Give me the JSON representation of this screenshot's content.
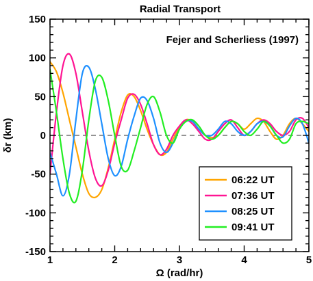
{
  "chart_data": {
    "type": "line",
    "title": "Radial Transport",
    "annotation": "Fejer and Scherliess (1997)",
    "xlabel": "Ω (rad/hr)",
    "ylabel": "δr (km)",
    "xlim": [
      1,
      5
    ],
    "ylim": [
      -150,
      150
    ],
    "xticks": [
      1,
      2,
      3,
      4,
      5
    ],
    "yticks": [
      -150,
      -100,
      -50,
      0,
      50,
      100,
      150
    ],
    "zero_line": "dashed",
    "legend_position": "lower-right",
    "series": [
      {
        "name": "06:22 UT",
        "color": "#FFA500",
        "x": [
          1.0,
          1.1,
          1.2,
          1.3,
          1.4,
          1.5,
          1.6,
          1.7,
          1.8,
          1.9,
          2.0,
          2.1,
          2.2,
          2.3,
          2.4,
          2.5,
          2.6,
          2.7,
          2.8,
          2.9,
          3.0,
          3.1,
          3.2,
          3.3,
          3.4,
          3.5,
          3.6,
          3.7,
          3.8,
          3.9,
          4.0,
          4.1,
          4.2,
          4.3,
          4.4,
          4.5,
          4.6,
          4.7,
          4.8,
          4.9,
          5.0
        ],
        "y": [
          95,
          82,
          55,
          20,
          -15,
          -50,
          -75,
          -80,
          -70,
          -42,
          -5,
          30,
          52,
          50,
          32,
          8,
          -12,
          -25,
          -22,
          -5,
          10,
          20,
          18,
          8,
          0,
          -3,
          0,
          10,
          18,
          15,
          8,
          15,
          22,
          18,
          5,
          -5,
          0,
          15,
          22,
          15,
          5
        ]
      },
      {
        "name": "07:36 UT",
        "color": "#FF1493",
        "x": [
          1.0,
          1.1,
          1.2,
          1.3,
          1.4,
          1.5,
          1.6,
          1.7,
          1.8,
          1.9,
          2.0,
          2.1,
          2.2,
          2.3,
          2.4,
          2.5,
          2.6,
          2.7,
          2.8,
          2.9,
          3.0,
          3.1,
          3.2,
          3.3,
          3.4,
          3.5,
          3.6,
          3.7,
          3.8,
          3.9,
          4.0,
          4.1,
          4.2,
          4.3,
          4.4,
          4.5,
          4.6,
          4.7,
          4.8,
          4.9,
          5.0
        ],
        "y": [
          -50,
          30,
          90,
          105,
          80,
          30,
          -20,
          -55,
          -65,
          -45,
          -10,
          20,
          48,
          53,
          40,
          15,
          -12,
          -25,
          -18,
          0,
          12,
          20,
          15,
          5,
          -5,
          -5,
          5,
          15,
          20,
          10,
          0,
          5,
          15,
          20,
          15,
          5,
          0,
          5,
          20,
          22,
          10
        ]
      },
      {
        "name": "08:25 UT",
        "color": "#1E90FF",
        "x": [
          1.0,
          1.1,
          1.2,
          1.3,
          1.4,
          1.5,
          1.6,
          1.7,
          1.8,
          1.9,
          2.0,
          2.1,
          2.2,
          2.3,
          2.4,
          2.5,
          2.6,
          2.7,
          2.8,
          2.9,
          3.0,
          3.1,
          3.2,
          3.3,
          3.4,
          3.5,
          3.6,
          3.7,
          3.8,
          3.9,
          4.0,
          4.1,
          4.2,
          4.3,
          4.4,
          4.5,
          4.6,
          4.7,
          4.8,
          4.9,
          5.0
        ],
        "y": [
          -22,
          -50,
          -78,
          -50,
          20,
          80,
          88,
          60,
          15,
          -30,
          -52,
          -40,
          -5,
          25,
          48,
          45,
          22,
          -10,
          -22,
          -10,
          8,
          18,
          18,
          8,
          0,
          0,
          8,
          18,
          15,
          5,
          0,
          5,
          15,
          18,
          12,
          0,
          -2,
          12,
          22,
          15,
          -10
        ]
      },
      {
        "name": "09:41 UT",
        "color": "#22EE22",
        "x": [
          1.0,
          1.1,
          1.2,
          1.3,
          1.4,
          1.5,
          1.6,
          1.7,
          1.8,
          1.9,
          2.0,
          2.1,
          2.2,
          2.3,
          2.4,
          2.5,
          2.6,
          2.7,
          2.8,
          2.9,
          3.0,
          3.1,
          3.2,
          3.3,
          3.4,
          3.5,
          3.6,
          3.7,
          3.8,
          3.9,
          4.0,
          4.1,
          4.2,
          4.3,
          4.4,
          4.5,
          4.6,
          4.7,
          4.8,
          4.9,
          5.0
        ],
        "y": [
          85,
          30,
          -30,
          -75,
          -85,
          -45,
          20,
          70,
          75,
          45,
          0,
          -40,
          -45,
          -20,
          10,
          40,
          50,
          30,
          0,
          -10,
          8,
          18,
          20,
          12,
          0,
          -5,
          0,
          10,
          18,
          15,
          5,
          0,
          8,
          18,
          12,
          0,
          -10,
          -5,
          15,
          18,
          15
        ]
      }
    ]
  }
}
